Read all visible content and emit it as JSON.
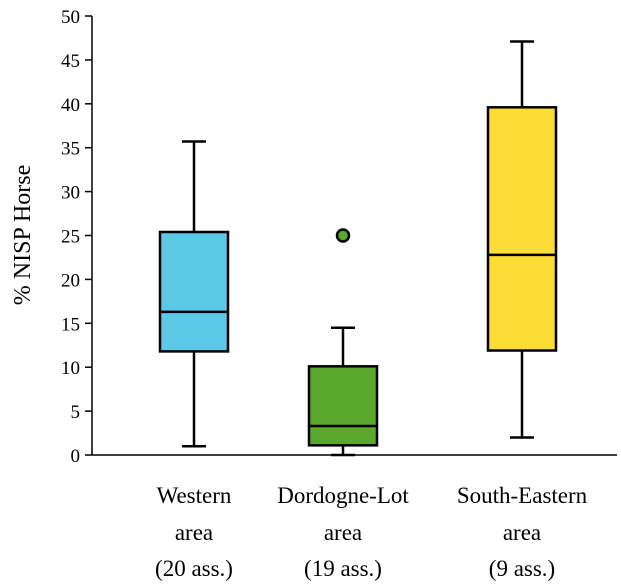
{
  "chart_data": {
    "type": "boxplot",
    "title": "",
    "xlabel": "",
    "ylabel": "% NISP Horse",
    "ylim": [
      0,
      50
    ],
    "yticks": [
      0,
      5,
      10,
      15,
      20,
      25,
      30,
      35,
      40,
      45,
      50
    ],
    "grid": false,
    "categories": [
      {
        "label_lines": [
          "Western",
          "area",
          "(20 ass.)"
        ],
        "color": "#5bc8e8",
        "min": 1,
        "q1": 11.8,
        "median": 16.3,
        "q3": 25.4,
        "max": 35.7,
        "outliers": []
      },
      {
        "label_lines": [
          "Dordogne-Lot",
          "area",
          "(19 ass.)"
        ],
        "color": "#5aa92c",
        "min": 0,
        "q1": 1.1,
        "median": 3.3,
        "q3": 10.1,
        "max": 14.5,
        "outliers": [
          25
        ]
      },
      {
        "label_lines": [
          "South-Eastern",
          "area",
          "(9 ass.)"
        ],
        "color": "#fcdd36",
        "min": 2,
        "q1": 11.9,
        "median": 22.8,
        "q3": 39.6,
        "max": 47.1,
        "outliers": []
      }
    ]
  }
}
